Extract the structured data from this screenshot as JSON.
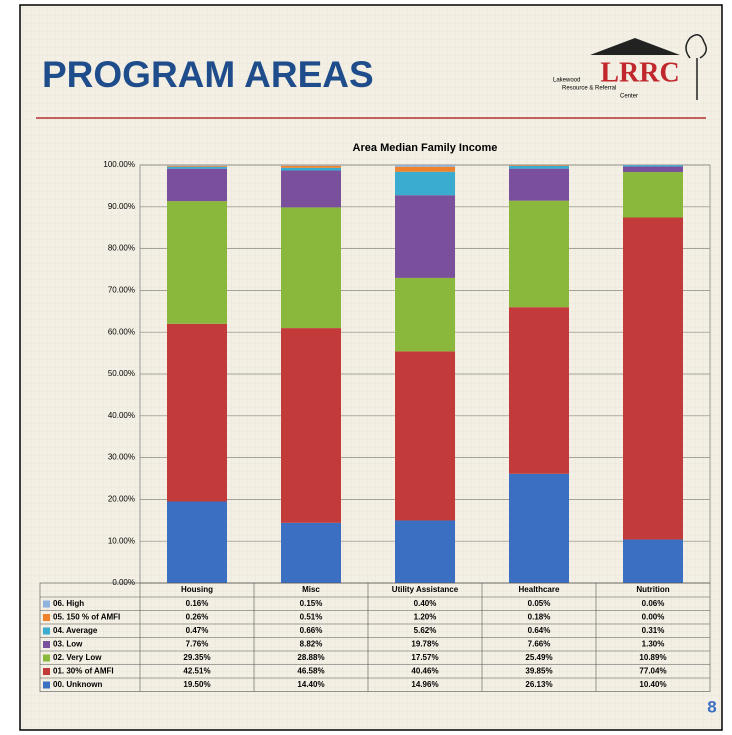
{
  "slide": {
    "title": "PROGRAM AREAS",
    "logo": {
      "name": "LRRC",
      "tagline": [
        "Lakewood",
        "Resource & Referral",
        "Center"
      ]
    },
    "page": "8"
  },
  "chart_data": {
    "type": "stacked_bar",
    "title": "Area Median Family Income",
    "categories": [
      "Housing",
      "Misc",
      "Utility Assistance",
      "Healthcare",
      "Nutrition"
    ],
    "series": [
      {
        "name": "00. Unknown",
        "color": "#3b6fc2",
        "values": [
          19.5,
          14.4,
          14.96,
          26.13,
          10.4
        ],
        "value_labels": [
          "19.50%",
          "14.40%",
          "14.96%",
          "26.13%",
          "10.40%"
        ]
      },
      {
        "name": "01. 30% of AMFI",
        "color": "#c23a3a",
        "values": [
          42.51,
          46.58,
          40.46,
          39.85,
          77.04
        ],
        "value_labels": [
          "42.51%",
          "46.58%",
          "40.46%",
          "39.85%",
          "77.04%"
        ]
      },
      {
        "name": "02. Very Low",
        "color": "#8ab83c",
        "values": [
          29.35,
          28.88,
          17.57,
          25.49,
          10.89
        ],
        "value_labels": [
          "29.35%",
          "28.88%",
          "17.57%",
          "25.49%",
          "10.89%"
        ]
      },
      {
        "name": "03. Low",
        "color": "#7a4f9c",
        "values": [
          7.76,
          8.82,
          19.78,
          7.66,
          1.3
        ],
        "value_labels": [
          "7.76%",
          "8.82%",
          "19.78%",
          "7.66%",
          "1.30%"
        ]
      },
      {
        "name": "04. Average",
        "color": "#3aaccf",
        "values": [
          0.47,
          0.66,
          5.62,
          0.64,
          0.31
        ],
        "value_labels": [
          "0.47%",
          "0.66%",
          "5.62%",
          "0.64%",
          "0.31%"
        ]
      },
      {
        "name": "05. 150 % of AMFI",
        "color": "#ef832b",
        "values": [
          0.26,
          0.51,
          1.2,
          0.18,
          0.0
        ],
        "value_labels": [
          "0.26%",
          "0.51%",
          "1.20%",
          "0.18%",
          "0.00%"
        ]
      },
      {
        "name": "06. High",
        "color": "#8fb2df",
        "values": [
          0.16,
          0.15,
          0.4,
          0.05,
          0.06
        ],
        "value_labels": [
          "0.16%",
          "0.15%",
          "0.40%",
          "0.05%",
          "0.06%"
        ]
      }
    ],
    "ylim": [
      0,
      100
    ],
    "yticks": [
      {
        "value": 0,
        "label": "0.00%"
      },
      {
        "value": 10,
        "label": "10.00%"
      },
      {
        "value": 20,
        "label": "20.00%"
      },
      {
        "value": 30,
        "label": "30.00%"
      },
      {
        "value": 40,
        "label": "40.00%"
      },
      {
        "value": 50,
        "label": "50.00%"
      },
      {
        "value": 60,
        "label": "60.00%"
      },
      {
        "value": 70,
        "label": "70.00%"
      },
      {
        "value": 80,
        "label": "80.00%"
      },
      {
        "value": 90,
        "label": "90.00%"
      },
      {
        "value": 100,
        "label": "100.00%"
      }
    ],
    "grid": true
  }
}
